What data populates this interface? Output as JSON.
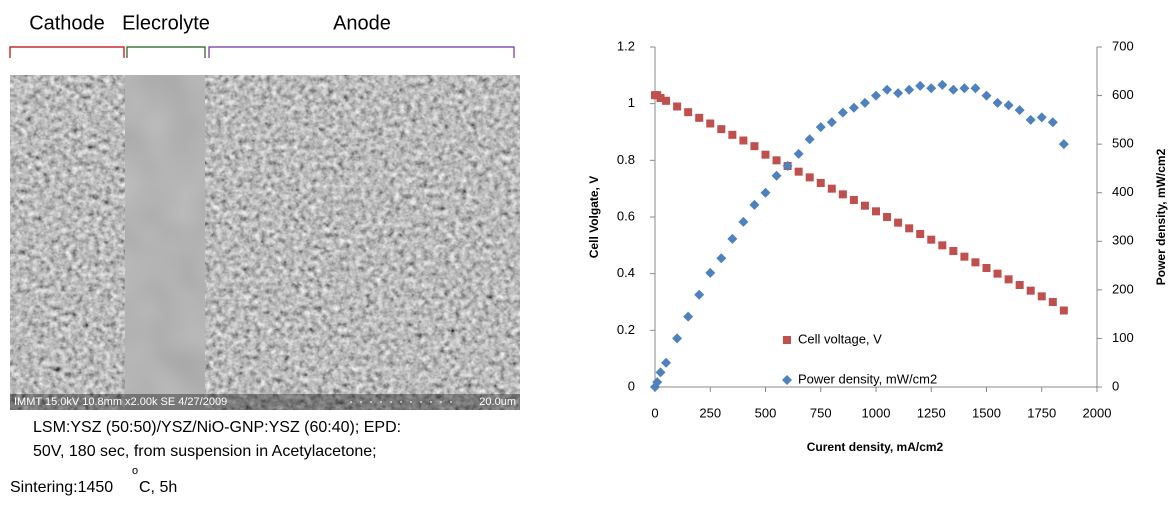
{
  "figure": {
    "labels": [
      "Cathode",
      "Elecrolyte",
      "Anode"
    ],
    "sem_info": "IMMT 15.0kV 10.8mm x2.00k SE  4/27/2009",
    "scale_bar": "20.0um",
    "caption": [
      "LSM:YSZ (50:50)/YSZ/NiO-GNP:YSZ (60:40); EPD:",
      "50V, 180 sec, from suspension in Acetylacetone;"
    ],
    "sintering": {
      "text": "Sintering:1450",
      "degree": "o",
      "unit": "C, 5h"
    }
  },
  "chart_data": {
    "type": "scatter",
    "x_label": "Curent density, mA/cm2",
    "y_label": "Cell Volgate, V",
    "y2_label": "Power density, mW/cm2",
    "xlim": [
      0,
      2000
    ],
    "xticks": [
      0,
      250,
      500,
      750,
      1000,
      1250,
      1500,
      1750,
      2000
    ],
    "ylim": [
      0,
      1.2
    ],
    "yticks": [
      0,
      0.2,
      0.4,
      0.6,
      0.8,
      1,
      1.2
    ],
    "y2lim": [
      0,
      700
    ],
    "y2ticks": [
      0,
      100,
      200,
      300,
      400,
      500,
      600,
      700
    ],
    "legend": "lower-center",
    "x": [
      0,
      10,
      25,
      50,
      100,
      150,
      200,
      250,
      300,
      350,
      400,
      450,
      500,
      550,
      600,
      650,
      700,
      750,
      800,
      850,
      900,
      950,
      1000,
      1050,
      1100,
      1150,
      1200,
      1250,
      1300,
      1350,
      1400,
      1450,
      1500,
      1550,
      1600,
      1650,
      1700,
      1750,
      1800,
      1850
    ],
    "series": [
      {
        "name": "Cell voltage, V",
        "color": "#c0504d",
        "marker": "square",
        "values": [
          1.03,
          1.03,
          1.02,
          1.01,
          0.99,
          0.97,
          0.95,
          0.93,
          0.91,
          0.89,
          0.87,
          0.85,
          0.82,
          0.8,
          0.78,
          0.76,
          0.74,
          0.72,
          0.7,
          0.68,
          0.66,
          0.64,
          0.62,
          0.6,
          0.58,
          0.56,
          0.54,
          0.52,
          0.5,
          0.48,
          0.46,
          0.44,
          0.42,
          0.4,
          0.38,
          0.36,
          0.34,
          0.32,
          0.3,
          0.27
        ]
      },
      {
        "name": "Power density, mW/cm2",
        "color": "#4f81bd",
        "marker": "diamond",
        "axis": "y2",
        "values": [
          0,
          10,
          30,
          50,
          100,
          145,
          190,
          235,
          265,
          305,
          340,
          375,
          400,
          435,
          455,
          480,
          510,
          535,
          545,
          565,
          575,
          585,
          600,
          612,
          605,
          612,
          620,
          615,
          622,
          612,
          615,
          615,
          600,
          585,
          580,
          570,
          550,
          555,
          545,
          500
        ]
      }
    ]
  }
}
